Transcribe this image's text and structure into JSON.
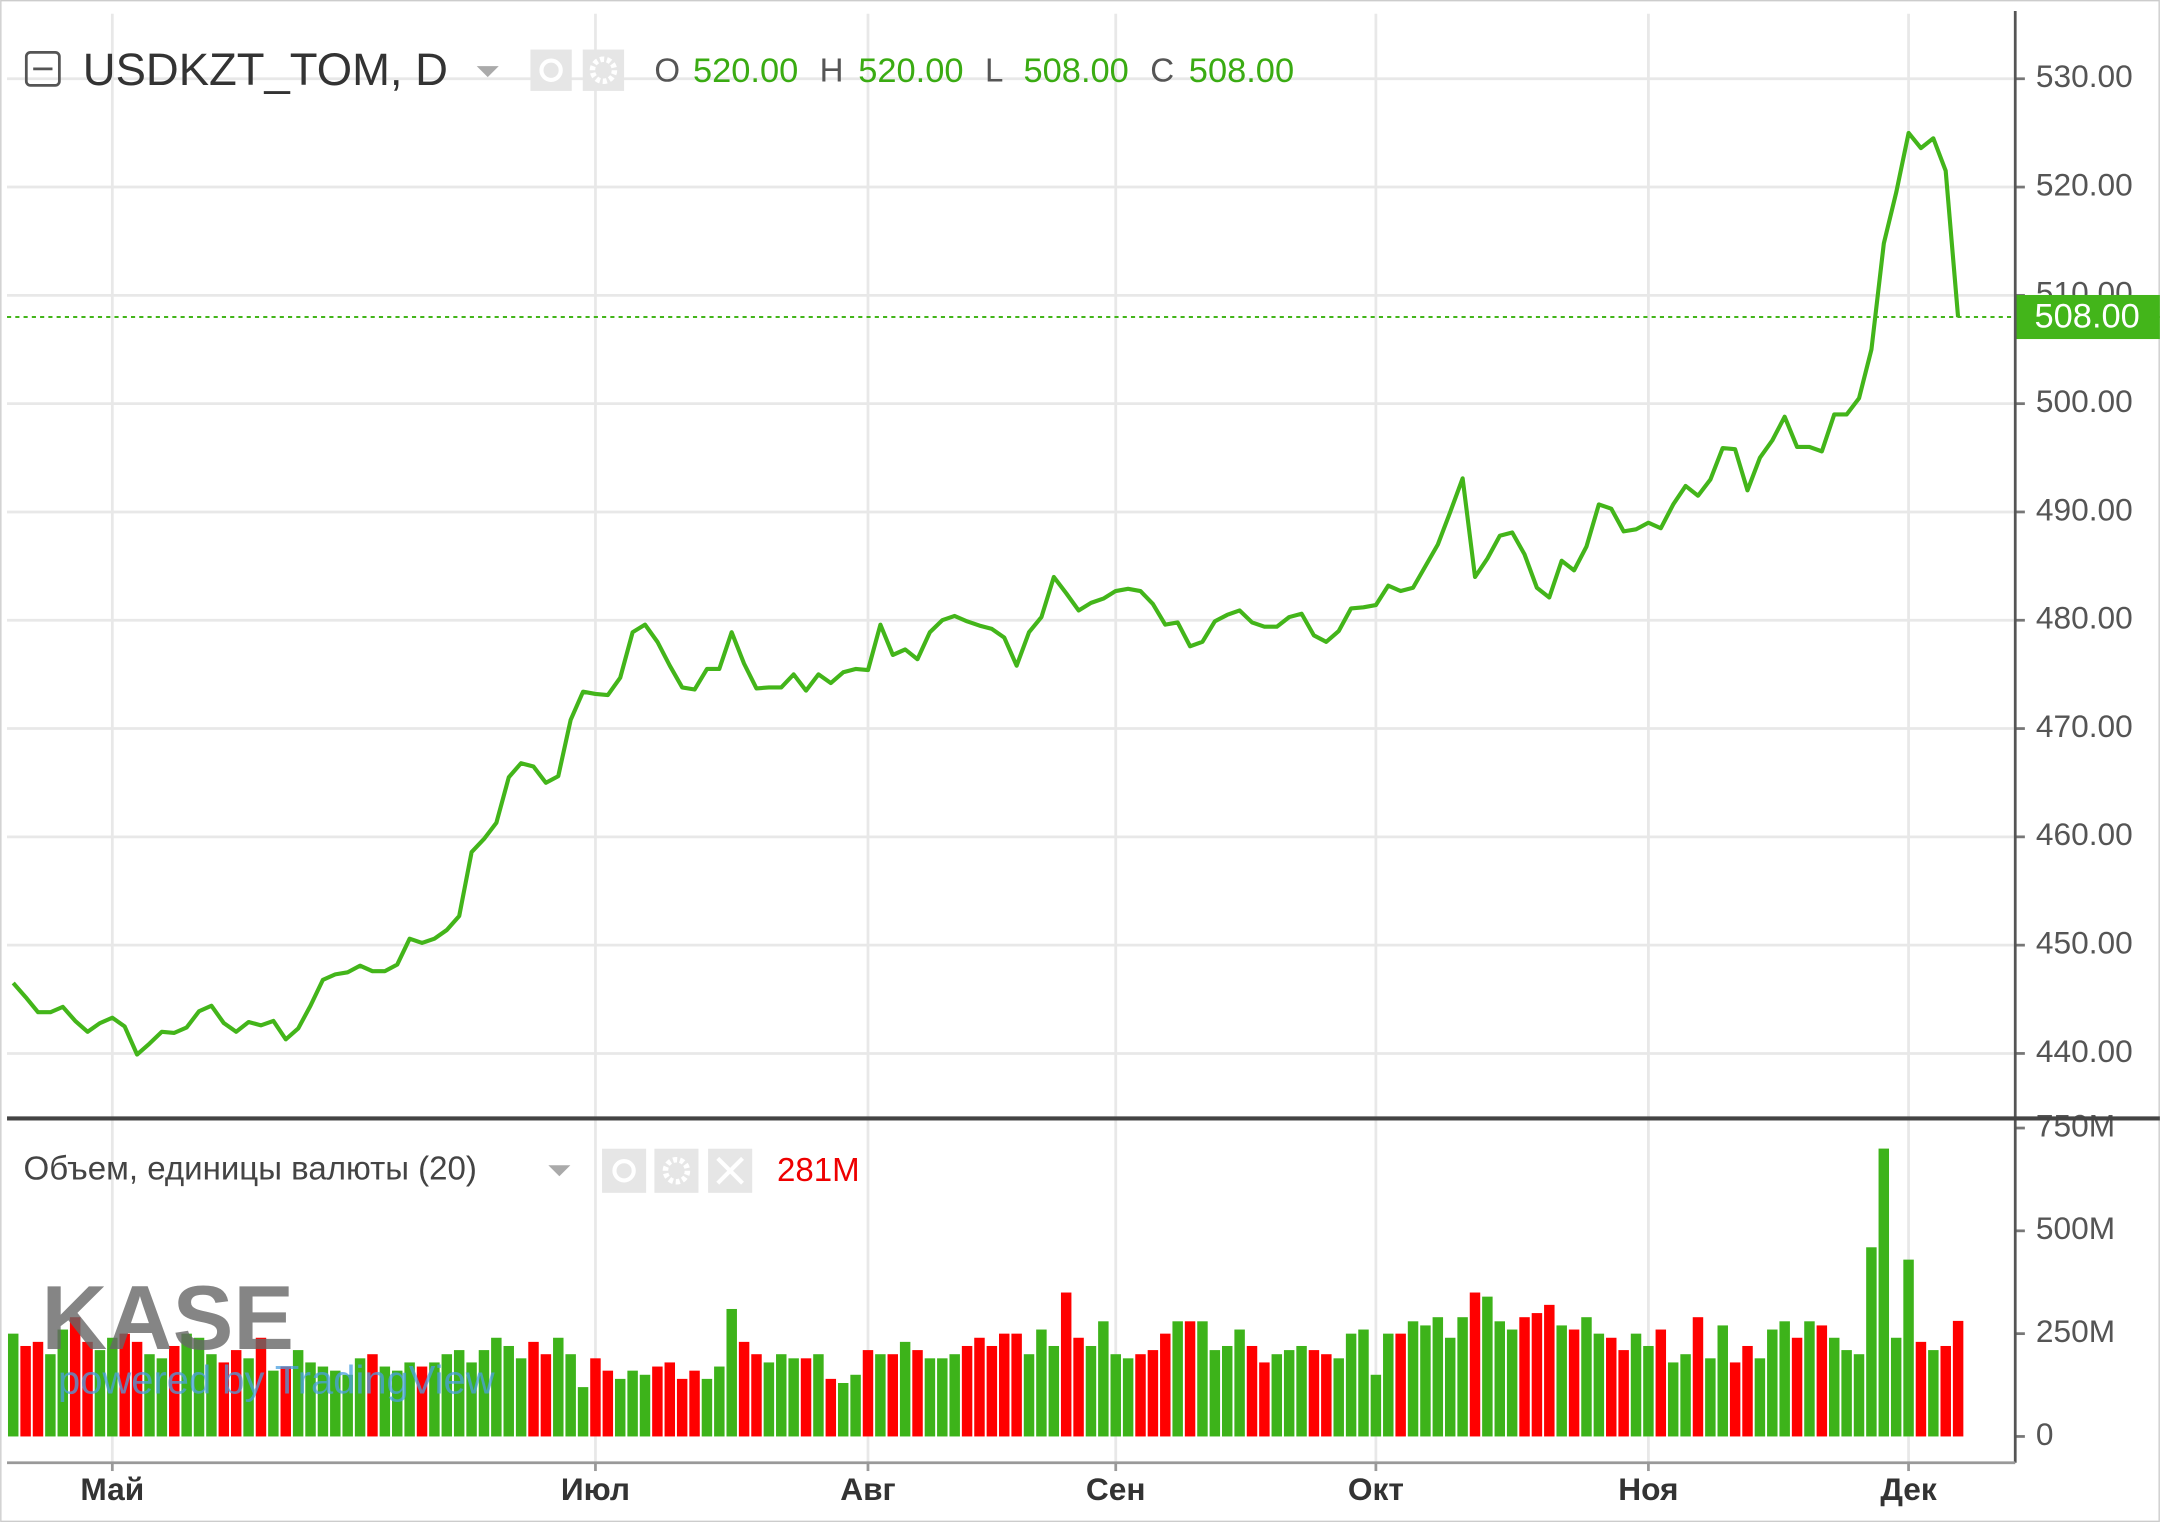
{
  "chart_data": [
    {
      "type": "line",
      "title": "USDKZT_TOM, D",
      "ohlc": [
        {
          "name": "O",
          "value": "520.00"
        },
        {
          "name": "H",
          "value": "520.00"
        },
        {
          "name": "L",
          "value": "508.00"
        },
        {
          "name": "C",
          "value": "508.00"
        }
      ],
      "color": "#43b51a",
      "values": [
        446.5,
        445.2,
        443.8,
        443.8,
        444.3,
        443.0,
        442.0,
        442.8,
        443.3,
        442.5,
        439.9,
        440.9,
        442.0,
        441.9,
        442.4,
        443.9,
        444.4,
        442.8,
        442.0,
        442.9,
        442.6,
        443.0,
        441.3,
        442.3,
        444.4,
        446.8,
        447.3,
        447.5,
        448.1,
        447.6,
        447.6,
        448.2,
        450.6,
        450.2,
        450.6,
        451.4,
        452.7,
        458.6,
        459.8,
        461.3,
        465.5,
        466.8,
        466.5,
        465.0,
        465.6,
        470.8,
        473.4,
        473.2,
        473.1,
        474.7,
        478.9,
        479.6,
        478.0,
        475.8,
        473.8,
        473.6,
        475.5,
        475.5,
        478.9,
        476.0,
        473.7,
        473.8,
        473.8,
        475.0,
        473.5,
        475.0,
        474.2,
        475.2,
        475.5,
        475.4,
        479.6,
        476.8,
        477.3,
        476.4,
        478.9,
        480.0,
        480.4,
        479.9,
        479.5,
        479.2,
        478.4,
        475.8,
        478.9,
        480.3,
        484.0,
        482.5,
        480.9,
        481.6,
        482.0,
        482.7,
        482.9,
        482.7,
        481.5,
        479.6,
        479.8,
        477.6,
        478.0,
        479.9,
        480.5,
        480.9,
        479.8,
        479.4,
        479.4,
        480.3,
        480.6,
        478.6,
        478.0,
        479.0,
        481.1,
        481.2,
        481.4,
        483.2,
        482.7,
        483.0,
        485.0,
        487.0,
        490.0,
        493.1,
        484.0,
        485.7,
        487.8,
        488.1,
        486.1,
        483.0,
        482.1,
        485.5,
        484.6,
        486.8,
        490.7,
        490.3,
        488.2,
        488.4,
        489.0,
        488.5,
        490.7,
        492.4,
        491.5,
        493.0,
        495.9,
        495.8,
        492.0,
        495.0,
        496.6,
        498.8,
        496.0,
        496.0,
        495.6,
        499.0,
        499.0,
        500.5,
        505.0,
        514.8,
        519.5,
        525.0,
        523.6,
        524.5,
        521.5,
        508.0
      ],
      "xlim": [
        -0.5,
        161.5
      ],
      "xticks": [
        {
          "value": 8,
          "label": "Май"
        },
        {
          "value": 47,
          "label": "Июл"
        },
        {
          "value": 69,
          "label": "Авг"
        },
        {
          "value": 89,
          "label": "Сен"
        },
        {
          "value": 110,
          "label": "Окт"
        },
        {
          "value": 132,
          "label": "Ноя"
        },
        {
          "value": 153,
          "label": "Дек"
        }
      ],
      "ylim": [
        434,
        536
      ],
      "yticks": [
        {
          "value": 440,
          "label": "440.00"
        },
        {
          "value": 450,
          "label": "450.00"
        },
        {
          "value": 460,
          "label": "460.00"
        },
        {
          "value": 470,
          "label": "470.00"
        },
        {
          "value": 480,
          "label": "480.00"
        },
        {
          "value": 490,
          "label": "490.00"
        },
        {
          "value": 500,
          "label": "500.00"
        },
        {
          "value": 510,
          "label": "510.00"
        },
        {
          "value": 520,
          "label": "520.00"
        },
        {
          "value": 530,
          "label": "530.00"
        }
      ],
      "last_price": {
        "value": 508,
        "label": "508.00"
      },
      "grid": true
    },
    {
      "type": "bar",
      "title": "Объем, единицы валюты (20)",
      "readout": "281M",
      "up_color": "#3db31a",
      "down_color": "#ff0000",
      "values": [
        250,
        220,
        230,
        200,
        260,
        290,
        230,
        210,
        240,
        250,
        230,
        200,
        190,
        220,
        250,
        240,
        200,
        180,
        210,
        190,
        240,
        160,
        170,
        210,
        180,
        170,
        160,
        150,
        190,
        200,
        170,
        160,
        180,
        170,
        180,
        200,
        210,
        180,
        210,
        240,
        220,
        190,
        230,
        200,
        240,
        200,
        120,
        190,
        160,
        140,
        160,
        150,
        170,
        180,
        140,
        160,
        140,
        170,
        310,
        230,
        200,
        180,
        200,
        190,
        190,
        200,
        140,
        130,
        150,
        210,
        200,
        200,
        230,
        210,
        190,
        190,
        200,
        220,
        240,
        220,
        250,
        250,
        200,
        260,
        220,
        350,
        240,
        220,
        280,
        200,
        190,
        200,
        210,
        250,
        280,
        280,
        280,
        210,
        220,
        260,
        220,
        180,
        200,
        210,
        220,
        210,
        200,
        190,
        250,
        260,
        150,
        250,
        250,
        280,
        270,
        290,
        240,
        290,
        350,
        340,
        280,
        260,
        290,
        300,
        320,
        270,
        260,
        290,
        250,
        240,
        210,
        250,
        220,
        260,
        180,
        200,
        290,
        190,
        270,
        180,
        220,
        190,
        260,
        280,
        240,
        280,
        270,
        240,
        210,
        200,
        460,
        700,
        240,
        430,
        230,
        210,
        220,
        281
      ],
      "ylim": [
        -64,
        770
      ],
      "yticks": [
        0,
        {
          "value": 250,
          "label": "250M"
        },
        {
          "value": 500,
          "label": "500M"
        },
        {
          "value": 750,
          "label": "750M"
        }
      ],
      "watermark": {
        "logo": "KASE",
        "text": "powered by TradingView"
      }
    }
  ]
}
